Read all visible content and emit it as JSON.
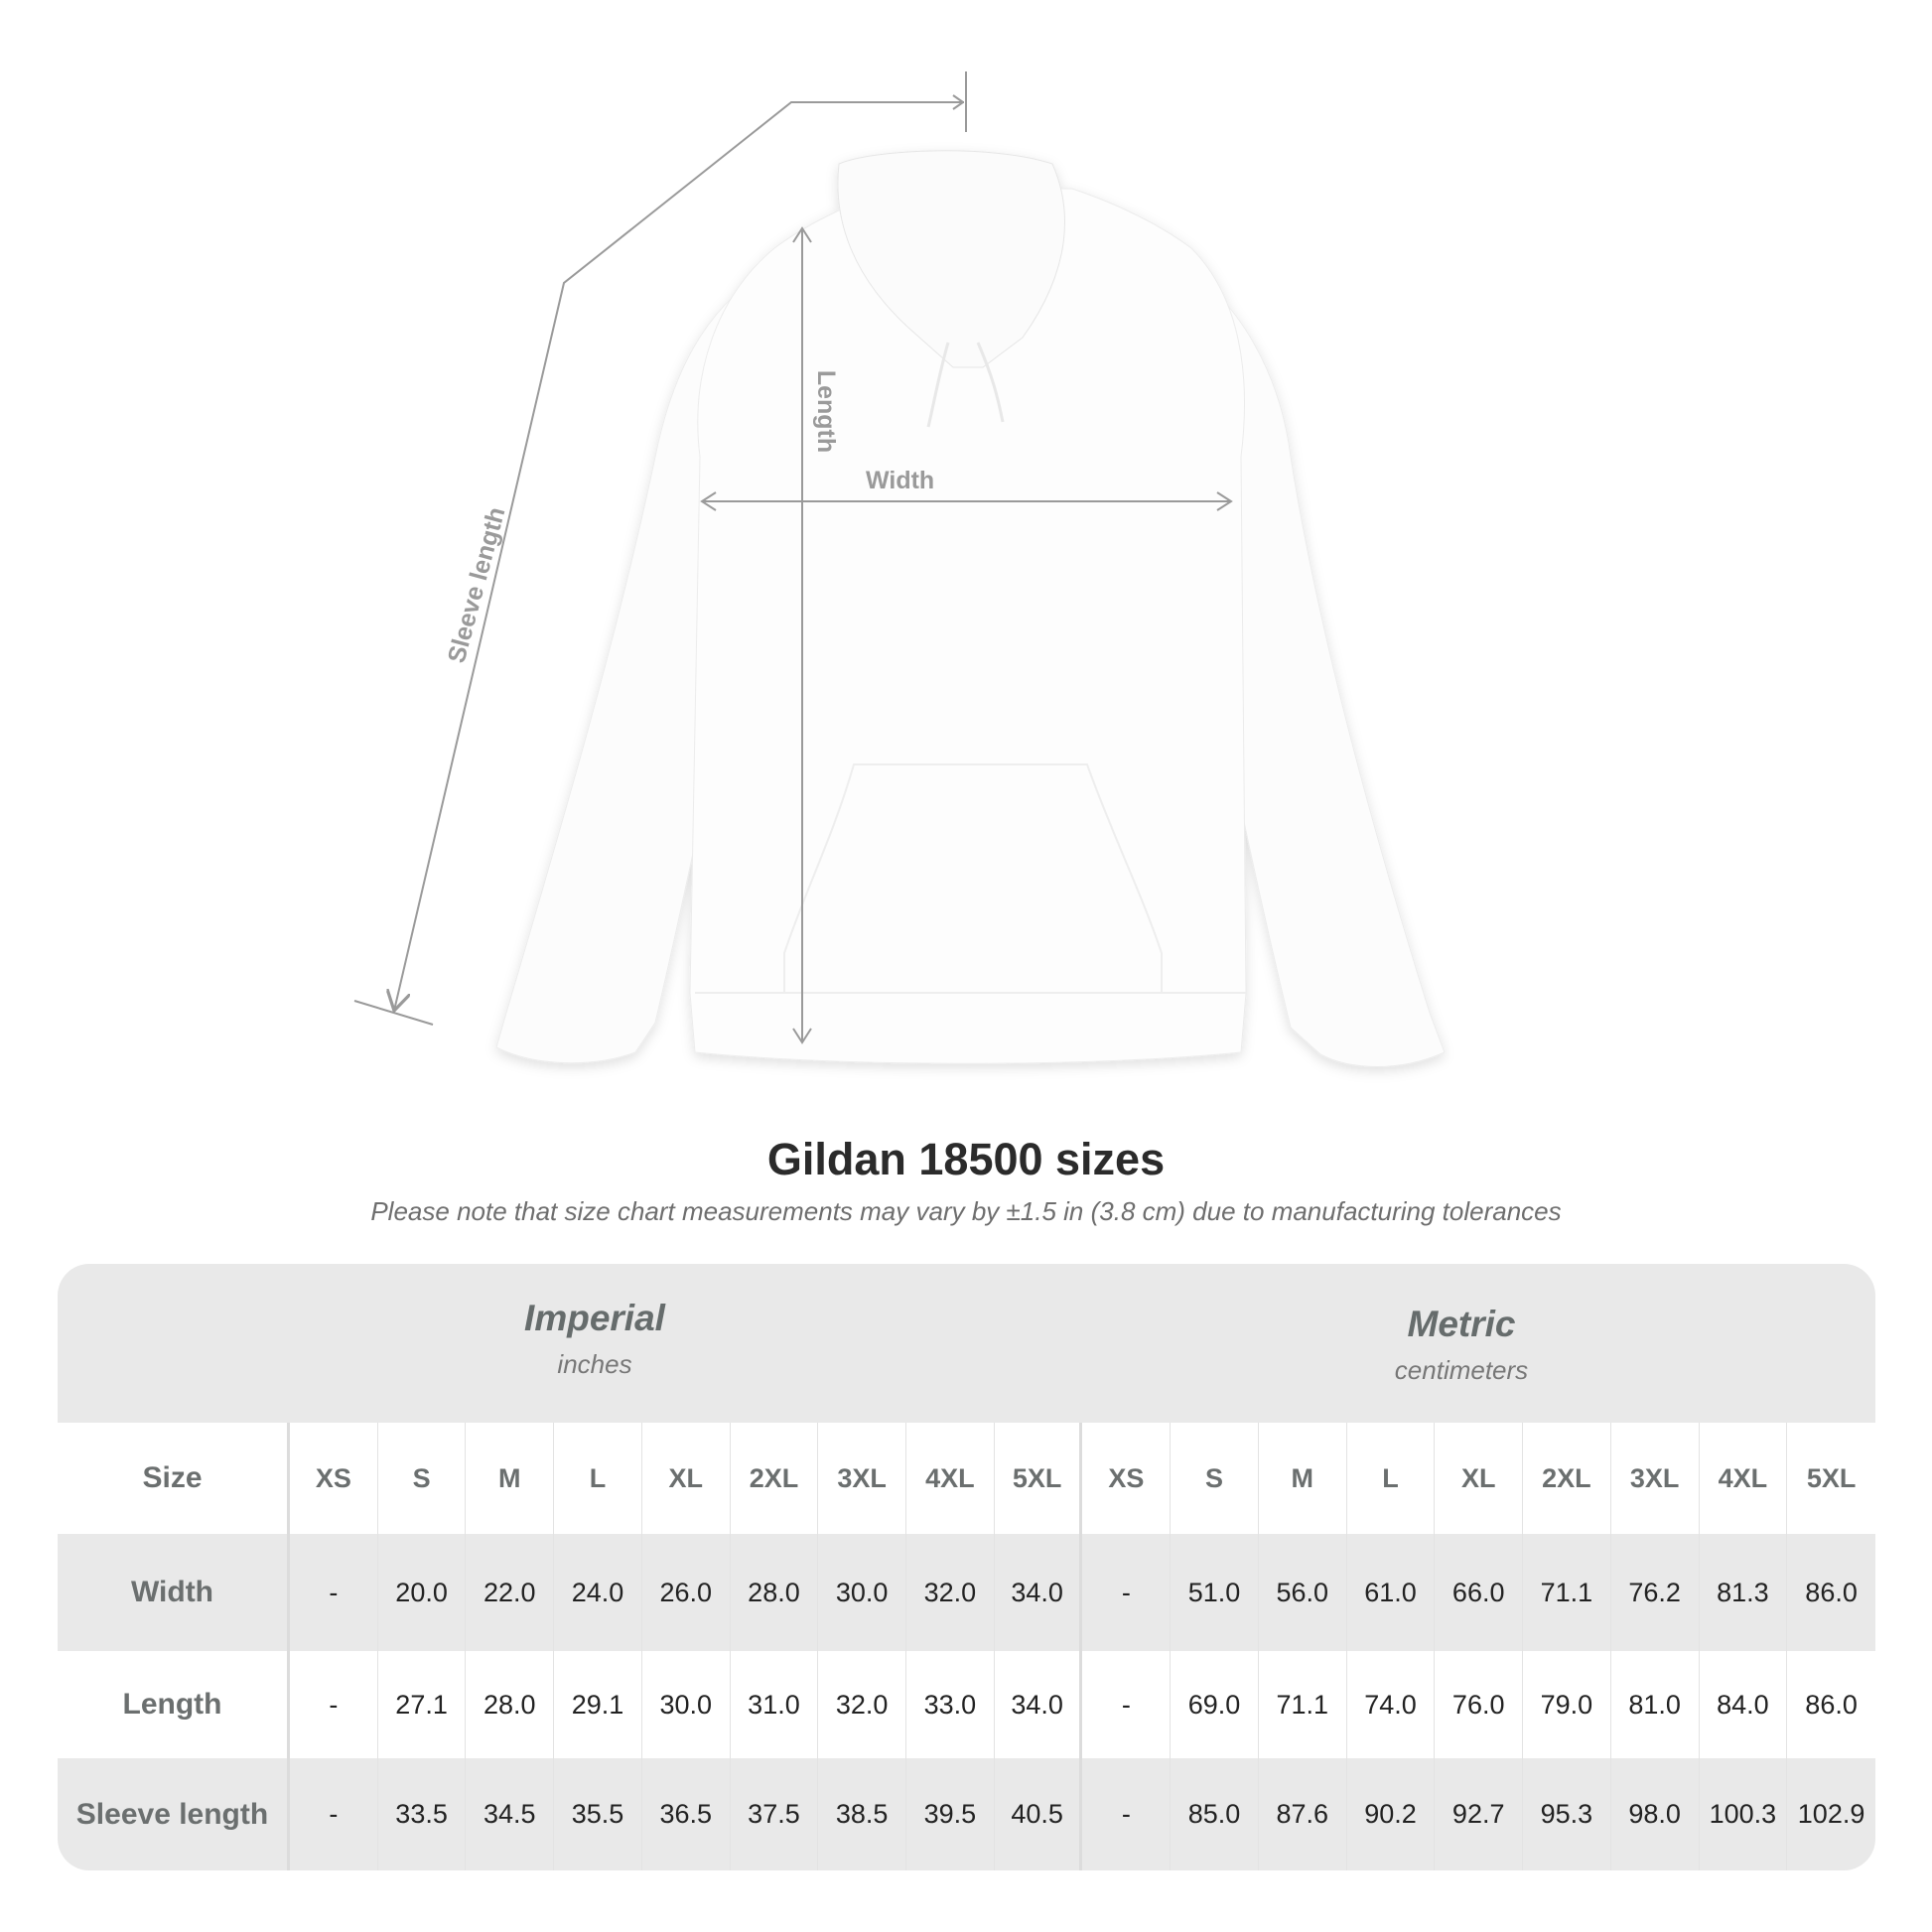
{
  "illustration": {
    "labels": {
      "length": "Length",
      "width": "Width",
      "sleeve": "Sleeve length"
    },
    "garment_color": "#fdfdfd",
    "line_color": "#9a9a9a"
  },
  "title": "Gildan 18500 sizes",
  "subtitle": "Please note that size chart measurements may vary by ±1.5 in (3.8 cm) due to manufacturing tolerances",
  "table": {
    "imperial": {
      "name": "Imperial",
      "unit": "inches"
    },
    "metric": {
      "name": "Metric",
      "unit": "centimeters"
    },
    "size_label": "Size",
    "sizes": [
      "XS",
      "S",
      "M",
      "L",
      "XL",
      "2XL",
      "3XL",
      "4XL",
      "5XL"
    ],
    "rows": [
      {
        "label": "Width",
        "imperial": [
          "-",
          "20.0",
          "22.0",
          "24.0",
          "26.0",
          "28.0",
          "30.0",
          "32.0",
          "34.0"
        ],
        "metric": [
          "-",
          "51.0",
          "56.0",
          "61.0",
          "66.0",
          "71.1",
          "76.2",
          "81.3",
          "86.0"
        ]
      },
      {
        "label": "Length",
        "imperial": [
          "-",
          "27.1",
          "28.0",
          "29.1",
          "30.0",
          "31.0",
          "32.0",
          "33.0",
          "34.0"
        ],
        "metric": [
          "-",
          "69.0",
          "71.1",
          "74.0",
          "76.0",
          "79.0",
          "81.0",
          "84.0",
          "86.0"
        ]
      },
      {
        "label": "Sleeve length",
        "imperial": [
          "-",
          "33.5",
          "34.5",
          "35.5",
          "36.5",
          "37.5",
          "38.5",
          "39.5",
          "40.5"
        ],
        "metric": [
          "-",
          "85.0",
          "87.6",
          "90.2",
          "92.7",
          "95.3",
          "98.0",
          "100.3",
          "102.9"
        ]
      }
    ],
    "colors": {
      "band": "#e9e9e9",
      "label_text": "#6b6f6f"
    }
  }
}
